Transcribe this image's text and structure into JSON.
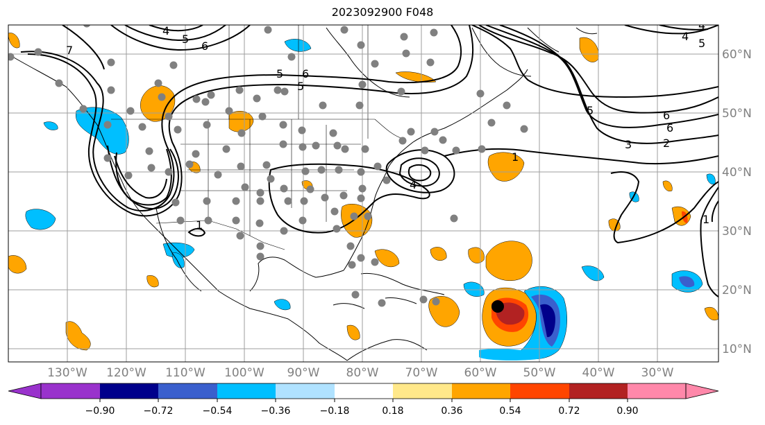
{
  "title": "2023092900 F048",
  "map": {
    "lon_labels": [
      "130°W",
      "120°W",
      "110°W",
      "100°W",
      "90°W",
      "80°W",
      "70°W",
      "60°W",
      "50°W",
      "40°W",
      "30°W"
    ],
    "lat_labels": [
      "60°N",
      "50°N",
      "40°N",
      "30°N",
      "20°N",
      "10°N"
    ],
    "contour_labels": [
      "4",
      "5",
      "6",
      "7",
      "5",
      "6",
      "5",
      "6",
      "5",
      "6",
      "4",
      "3",
      "2",
      "1",
      "4",
      "1",
      "1",
      "3",
      "4",
      "5",
      "5",
      "4",
      "3",
      "2",
      "1",
      "1"
    ],
    "gridlines": true,
    "station_color": "#808080",
    "storm_marker_color": "#000000"
  },
  "colorbar": {
    "tick_labels": [
      "−0.90",
      "−0.72",
      "−0.54",
      "−0.36",
      "−0.18",
      "0.18",
      "0.36",
      "0.54",
      "0.72",
      "0.90"
    ],
    "colors": [
      "#9932cc",
      "#00008b",
      "#3a5fcd",
      "#00bfff",
      "#b0e2ff",
      "#ffffff",
      "#ffe88a",
      "#ffa500",
      "#ff4500",
      "#b22222",
      "#ff88aa"
    ]
  }
}
